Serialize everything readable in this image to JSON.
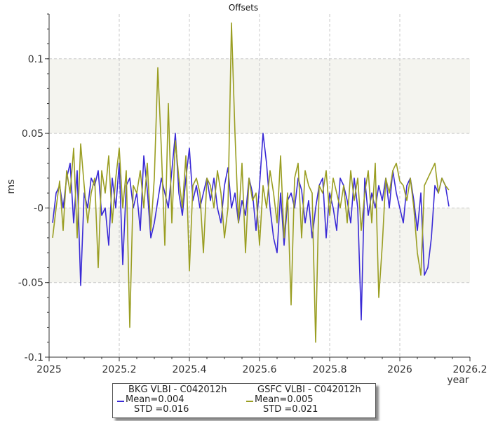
{
  "chart_data": {
    "type": "line",
    "title": "Offsets",
    "xlabel": "year",
    "ylabel": "ms",
    "xlim": [
      2025,
      2026.2
    ],
    "ylim": [
      -0.1,
      0.13
    ],
    "x_ticks": [
      2025,
      2025.2,
      2025.4,
      2025.6,
      2025.8,
      2026,
      2026.2
    ],
    "x_tick_labels": [
      "2025",
      "2025.2",
      "2025.4",
      "2025.6",
      "2025.8",
      "2026",
      "2026.2"
    ],
    "y_ticks": [
      -0.1,
      -0.05,
      0,
      0.05,
      0.1
    ],
    "y_tick_labels": [
      "-0.1",
      "-0.05",
      "-0",
      "0.05",
      "0.1"
    ],
    "shaded_bands": [
      [
        0.05,
        0.1
      ],
      [
        -0.05,
        0
      ]
    ],
    "grid": true,
    "legend_position": "bottom",
    "series": [
      {
        "name": "BKG VLBI - C042012h",
        "color": "#3a2ad6",
        "mean": "Mean=0.004",
        "std": "STD =0.016",
        "x": [
          2025.01,
          2025.02,
          2025.03,
          2025.04,
          2025.05,
          2025.06,
          2025.07,
          2025.08,
          2025.09,
          2025.1,
          2025.11,
          2025.12,
          2025.13,
          2025.14,
          2025.15,
          2025.16,
          2025.17,
          2025.18,
          2025.19,
          2025.2,
          2025.21,
          2025.22,
          2025.23,
          2025.24,
          2025.25,
          2025.26,
          2025.27,
          2025.28,
          2025.29,
          2025.3,
          2025.31,
          2025.32,
          2025.33,
          2025.34,
          2025.35,
          2025.36,
          2025.37,
          2025.38,
          2025.39,
          2025.4,
          2025.41,
          2025.42,
          2025.43,
          2025.44,
          2025.45,
          2025.46,
          2025.47,
          2025.48,
          2025.49,
          2025.5,
          2025.51,
          2025.52,
          2025.53,
          2025.54,
          2025.55,
          2025.56,
          2025.57,
          2025.58,
          2025.59,
          2025.6,
          2025.61,
          2025.62,
          2025.63,
          2025.64,
          2025.65,
          2025.66,
          2025.67,
          2025.68,
          2025.69,
          2025.7,
          2025.71,
          2025.72,
          2025.73,
          2025.74,
          2025.75,
          2025.76,
          2025.77,
          2025.78,
          2025.79,
          2025.8,
          2025.81,
          2025.82,
          2025.83,
          2025.84,
          2025.85,
          2025.86,
          2025.87,
          2025.88,
          2025.89,
          2025.9,
          2025.91,
          2025.92,
          2025.93,
          2025.94,
          2025.95,
          2025.96,
          2025.97,
          2025.98,
          2025.99,
          2026,
          2026.01,
          2026.02,
          2026.03,
          2026.04,
          2026.05,
          2026.06,
          2026.07,
          2026.08,
          2026.09,
          2026.1,
          2026.11,
          2026.12,
          2026.13,
          2026.14
        ],
        "y": [
          -0.01,
          0.01,
          0.015,
          0.0,
          0.02,
          0.03,
          -0.01,
          0.025,
          -0.052,
          0.01,
          0.0,
          0.02,
          0.015,
          0.025,
          -0.005,
          0.0,
          -0.025,
          0.02,
          0.0,
          0.03,
          -0.038,
          0.015,
          0.02,
          0.0,
          0.01,
          -0.015,
          0.035,
          0.012,
          -0.02,
          -0.01,
          0.005,
          0.02,
          0.01,
          0.0,
          0.025,
          0.05,
          0.01,
          -0.005,
          0.02,
          0.04,
          0.005,
          0.015,
          0.0,
          0.01,
          0.02,
          0.005,
          0.02,
          0.0,
          -0.01,
          0.015,
          0.027,
          0.0,
          0.01,
          -0.01,
          0.005,
          -0.005,
          0.02,
          0.01,
          -0.015,
          0.015,
          0.05,
          0.03,
          0.0,
          -0.02,
          -0.03,
          0.01,
          -0.025,
          0.005,
          0.01,
          0.0,
          0.02,
          0.012,
          -0.01,
          0.005,
          -0.02,
          0.0,
          0.015,
          0.02,
          -0.02,
          0.01,
          0.0,
          -0.015,
          0.02,
          0.015,
          0.005,
          -0.01,
          0.02,
          0.0,
          -0.075,
          0.02,
          -0.005,
          0.01,
          0.0,
          0.015,
          0.005,
          0.02,
          0.0,
          0.025,
          0.01,
          0.0,
          -0.01,
          0.015,
          0.02,
          0.005,
          -0.015,
          0.01,
          -0.045,
          -0.04,
          -0.02,
          0.015,
          0.01,
          0.02,
          0.015,
          0.001
        ]
      },
      {
        "name": "GSFC VLBI - C042012h",
        "color": "#9a9e22",
        "mean": "Mean=0.005",
        "std": "STD =0.021",
        "x": [
          2025.01,
          2025.02,
          2025.03,
          2025.04,
          2025.05,
          2025.06,
          2025.07,
          2025.08,
          2025.09,
          2025.1,
          2025.11,
          2025.12,
          2025.13,
          2025.14,
          2025.15,
          2025.16,
          2025.17,
          2025.18,
          2025.19,
          2025.2,
          2025.21,
          2025.22,
          2025.23,
          2025.24,
          2025.25,
          2025.26,
          2025.27,
          2025.28,
          2025.29,
          2025.3,
          2025.31,
          2025.32,
          2025.33,
          2025.34,
          2025.35,
          2025.36,
          2025.37,
          2025.38,
          2025.39,
          2025.4,
          2025.41,
          2025.42,
          2025.43,
          2025.44,
          2025.45,
          2025.46,
          2025.47,
          2025.48,
          2025.49,
          2025.5,
          2025.51,
          2025.52,
          2025.53,
          2025.54,
          2025.55,
          2025.56,
          2025.57,
          2025.58,
          2025.59,
          2025.6,
          2025.61,
          2025.62,
          2025.63,
          2025.64,
          2025.65,
          2025.66,
          2025.67,
          2025.68,
          2025.69,
          2025.7,
          2025.71,
          2025.72,
          2025.73,
          2025.74,
          2025.75,
          2025.76,
          2025.77,
          2025.78,
          2025.79,
          2025.8,
          2025.81,
          2025.82,
          2025.83,
          2025.84,
          2025.85,
          2025.86,
          2025.87,
          2025.88,
          2025.89,
          2025.9,
          2025.91,
          2025.92,
          2025.93,
          2025.94,
          2025.95,
          2025.96,
          2025.97,
          2025.98,
          2025.99,
          2026,
          2026.01,
          2026.02,
          2026.03,
          2026.04,
          2026.05,
          2026.06,
          2026.07,
          2026.08,
          2026.09,
          2026.1,
          2026.11,
          2026.12,
          2026.13,
          2026.14
        ],
        "y": [
          -0.02,
          0.0,
          0.018,
          -0.015,
          0.025,
          0.01,
          0.04,
          -0.02,
          0.043,
          0.015,
          -0.01,
          0.01,
          0.02,
          -0.04,
          0.025,
          0.01,
          0.035,
          -0.01,
          0.02,
          0.04,
          0.0,
          0.025,
          -0.08,
          0.015,
          0.01,
          0.025,
          0.0,
          0.03,
          -0.015,
          0.02,
          0.094,
          0.04,
          -0.025,
          0.07,
          -0.01,
          0.045,
          0.02,
          0.0,
          0.035,
          -0.042,
          0.015,
          0.02,
          0.01,
          -0.03,
          0.02,
          0.015,
          0.0,
          0.025,
          0.01,
          -0.02,
          0.0,
          0.124,
          0.05,
          -0.01,
          0.03,
          -0.03,
          0.02,
          0.005,
          0.01,
          -0.025,
          0.015,
          0.0,
          0.025,
          0.01,
          -0.01,
          0.035,
          -0.02,
          0.01,
          -0.065,
          0.02,
          0.03,
          -0.02,
          0.025,
          0.015,
          0.01,
          -0.09,
          0.015,
          0.01,
          0.025,
          -0.005,
          0.02,
          0.01,
          0.0,
          0.015,
          -0.01,
          0.025,
          0.005,
          0.02,
          -0.015,
          0.01,
          0.025,
          -0.01,
          0.03,
          -0.06,
          -0.025,
          0.02,
          0.01,
          0.025,
          0.03,
          0.018,
          0.015,
          0.005,
          0.02,
          0.0,
          -0.03,
          -0.045,
          0.015,
          0.02,
          0.025,
          0.03,
          0.01,
          0.02,
          0.015,
          0.012
        ]
      }
    ]
  }
}
